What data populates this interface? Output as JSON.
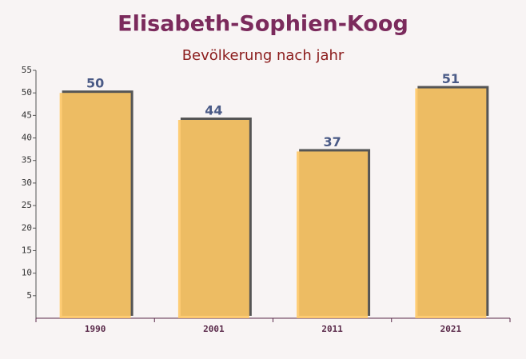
{
  "chart_data": {
    "type": "bar",
    "title": "Elisabeth-Sophien-Koog",
    "subtitle": "Bevölkerung nach jahr",
    "categories": [
      "1990",
      "2001",
      "2011",
      "2021"
    ],
    "values": [
      50,
      44,
      37,
      51
    ],
    "color": "#fec865",
    "ylim": [
      0,
      55
    ],
    "yticks": [
      5,
      10,
      15,
      20,
      25,
      30,
      35,
      40,
      45,
      50,
      55
    ],
    "grid": false
  }
}
